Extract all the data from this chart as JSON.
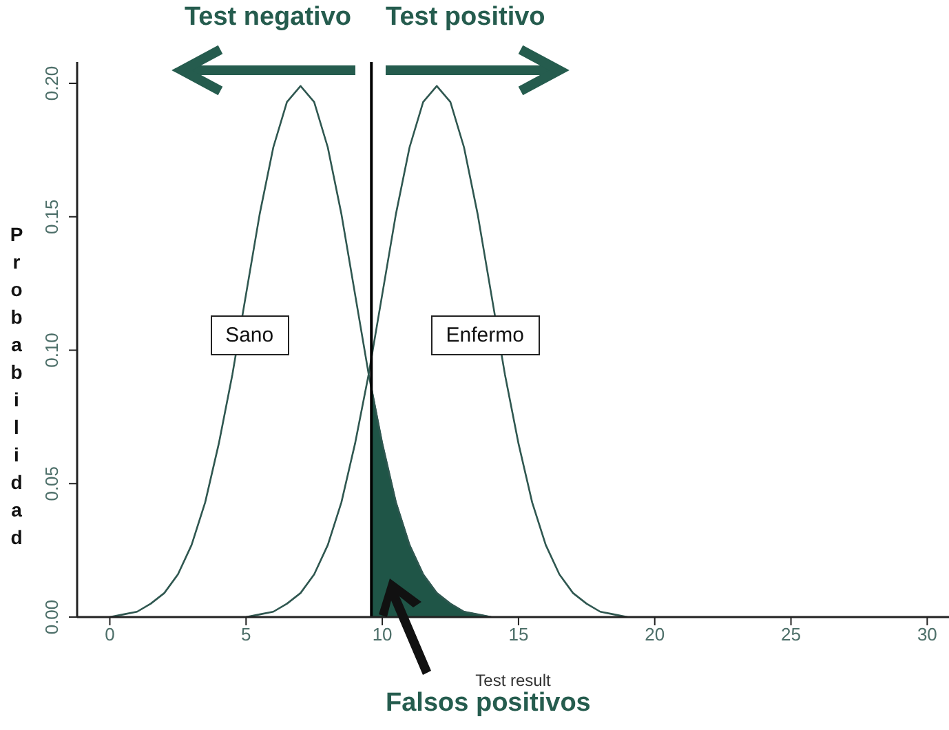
{
  "chart_data": {
    "type": "line",
    "xlabel": "Test result",
    "ylabel": "Probabilidad",
    "annotations": [
      "Test negativo",
      "Test positivo",
      "Falsos positivos"
    ],
    "xlim": [
      -1.2,
      30.8
    ],
    "ylim": [
      0,
      0.208
    ],
    "xticks": [
      0,
      5,
      10,
      15,
      20,
      25,
      30
    ],
    "yticks": [
      {
        "value": 0,
        "label": "0.00"
      },
      {
        "value": 0.05,
        "label": "0.05"
      },
      {
        "value": 0.1,
        "label": "0.10"
      },
      {
        "value": 0.15,
        "label": "0.15"
      },
      {
        "value": 0.2,
        "label": "0.20"
      }
    ],
    "marker": "none",
    "line_style": "solid",
    "ref_lines": [
      {
        "axis": "x",
        "value": 9.6,
        "color": "#000000"
      }
    ],
    "series": [
      {
        "name": "Sano",
        "color": "#2f5750",
        "x": [
          0,
          0.5,
          1,
          1.5,
          2,
          2.5,
          3,
          3.5,
          4,
          4.5,
          5,
          5.5,
          6,
          6.5,
          7,
          7.5,
          8,
          8.5,
          9,
          9.5,
          10,
          10.5,
          11,
          11.5,
          12,
          12.5,
          13,
          13.5,
          14
        ],
        "values": [
          0.0,
          0.001,
          0.002,
          0.005,
          0.009,
          0.016,
          0.027,
          0.043,
          0.065,
          0.091,
          0.121,
          0.151,
          0.176,
          0.193,
          0.199,
          0.193,
          0.176,
          0.151,
          0.121,
          0.091,
          0.065,
          0.043,
          0.027,
          0.016,
          0.009,
          0.005,
          0.002,
          0.001,
          0.0
        ]
      },
      {
        "name": "Enfermo",
        "color": "#2f5750",
        "x": [
          5,
          5.5,
          6,
          6.5,
          7,
          7.5,
          8,
          8.5,
          9,
          9.5,
          10,
          10.5,
          11,
          11.5,
          12,
          12.5,
          13,
          13.5,
          14,
          14.5,
          15,
          15.5,
          16,
          16.5,
          17,
          17.5,
          18,
          18.5,
          19
        ],
        "values": [
          0.0,
          0.001,
          0.002,
          0.005,
          0.009,
          0.016,
          0.027,
          0.043,
          0.065,
          0.091,
          0.121,
          0.151,
          0.176,
          0.193,
          0.199,
          0.193,
          0.176,
          0.151,
          0.121,
          0.091,
          0.065,
          0.043,
          0.027,
          0.016,
          0.009,
          0.005,
          0.002,
          0.001,
          0.0
        ]
      },
      {
        "type": "area",
        "color": "#1f5547",
        "x": [
          9.6,
          10,
          10.5,
          11,
          11.5,
          12,
          12.5,
          13,
          13.5,
          14
        ],
        "values": [
          0.086,
          0.065,
          0.043,
          0.027,
          0.016,
          0.009,
          0.005,
          0.002,
          0.001,
          0.0
        ]
      }
    ]
  }
}
